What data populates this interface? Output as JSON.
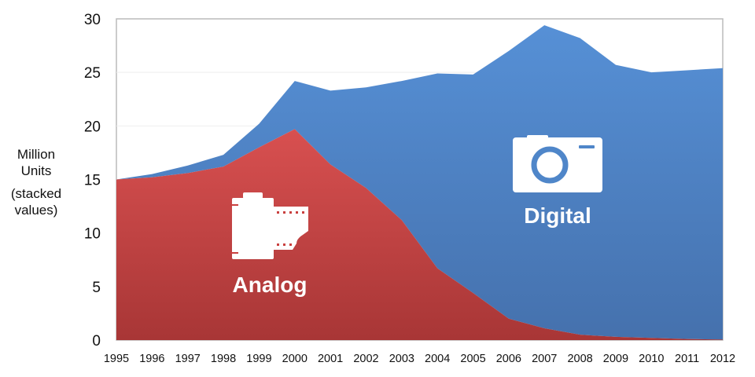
{
  "chart_data": {
    "type": "area",
    "stacked": true,
    "title": "",
    "xlabel": "",
    "ylabel_lines": [
      "Million",
      "Units",
      "(stacked",
      "values)"
    ],
    "ylim": [
      0,
      30
    ],
    "yticks": [
      0,
      5,
      10,
      15,
      20,
      25,
      30
    ],
    "grid": true,
    "x": [
      1995,
      1996,
      1997,
      1998,
      1999,
      2000,
      2001,
      2002,
      2003,
      2004,
      2005,
      2006,
      2007,
      2008,
      2009,
      2010,
      2011,
      2012
    ],
    "series": [
      {
        "name": "Analog",
        "color": "#c9403f",
        "icon": "film-roll-icon",
        "values": [
          15.0,
          15.2,
          15.6,
          16.2,
          18.0,
          19.7,
          16.4,
          14.2,
          11.2,
          6.7,
          4.4,
          2.0,
          1.1,
          0.5,
          0.3,
          0.2,
          0.1,
          0.05
        ]
      },
      {
        "name": "Digital",
        "color": "#4f86c9",
        "icon": "camera-icon",
        "values": [
          0.0,
          0.3,
          0.7,
          1.1,
          2.2,
          4.5,
          6.9,
          9.4,
          13.0,
          18.2,
          20.4,
          25.0,
          28.3,
          27.7,
          25.4,
          24.8,
          25.1,
          25.35
        ]
      }
    ]
  }
}
